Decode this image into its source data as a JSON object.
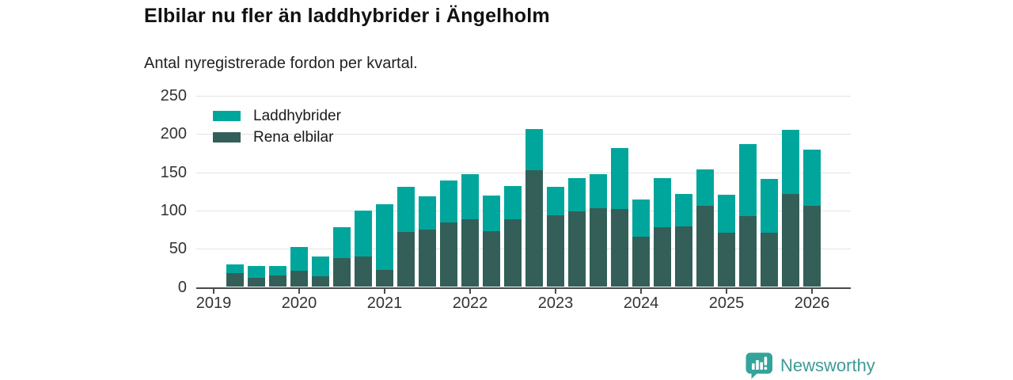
{
  "header": {
    "title": "Elbilar nu fler än laddhybrider i Ängelholm",
    "subtitle": "Antal nyregistrerade fordon per kvartal."
  },
  "legend": {
    "items": [
      {
        "label": "Laddhybrider",
        "color": "#00a69c"
      },
      {
        "label": "Rena elbilar",
        "color": "#345f59"
      }
    ]
  },
  "chart_data": {
    "type": "bar",
    "stacked": true,
    "title": "Elbilar nu fler än laddhybrider i Ängelholm",
    "subtitle": "Antal nyregistrerade fordon per kvartal.",
    "categories": [
      "2019 Q2",
      "2019 Q3",
      "2019 Q4",
      "2020 Q1",
      "2020 Q2",
      "2020 Q3",
      "2020 Q4",
      "2021 Q1",
      "2021 Q2",
      "2021 Q3",
      "2021 Q4",
      "2022 Q1",
      "2022 Q2",
      "2022 Q3",
      "2022 Q4",
      "2023 Q1",
      "2023 Q2",
      "2023 Q3",
      "2023 Q4",
      "2024 Q1",
      "2024 Q2",
      "2024 Q3",
      "2024 Q4",
      "2025 Q1",
      "2025 Q2",
      "2025 Q3",
      "2025 Q4",
      "2026 Q1"
    ],
    "series": [
      {
        "name": "Rena elbilar",
        "color": "#345f59",
        "values": [
          18,
          12,
          15,
          21,
          14,
          38,
          40,
          22,
          72,
          75,
          84,
          89,
          73,
          88,
          153,
          94,
          99,
          103,
          102,
          66,
          78,
          79,
          106,
          71,
          93,
          71,
          122,
          106
        ]
      },
      {
        "name": "Laddhybrider",
        "color": "#00a69c",
        "values": [
          12,
          15,
          12,
          31,
          26,
          40,
          60,
          86,
          59,
          44,
          55,
          58,
          47,
          44,
          54,
          37,
          43,
          44,
          80,
          48,
          64,
          43,
          48,
          50,
          94,
          70,
          83,
          74
        ]
      }
    ],
    "x_tick_labels": [
      "2019",
      "2020",
      "2021",
      "2022",
      "2023",
      "2024",
      "2025",
      "2026"
    ],
    "xlabel": "",
    "ylabel": "",
    "ylim": [
      0,
      250
    ],
    "yticks": [
      0,
      50,
      100,
      150,
      200,
      250
    ],
    "grid": "horizontal",
    "legend_position": "top-left"
  },
  "branding": {
    "logo_text": "Newsworthy",
    "logo_text_color": "#3d9a94",
    "logo_icon_color": "#34a49b",
    "logo_icon": "newsworthy-chart-bubble-icon"
  }
}
